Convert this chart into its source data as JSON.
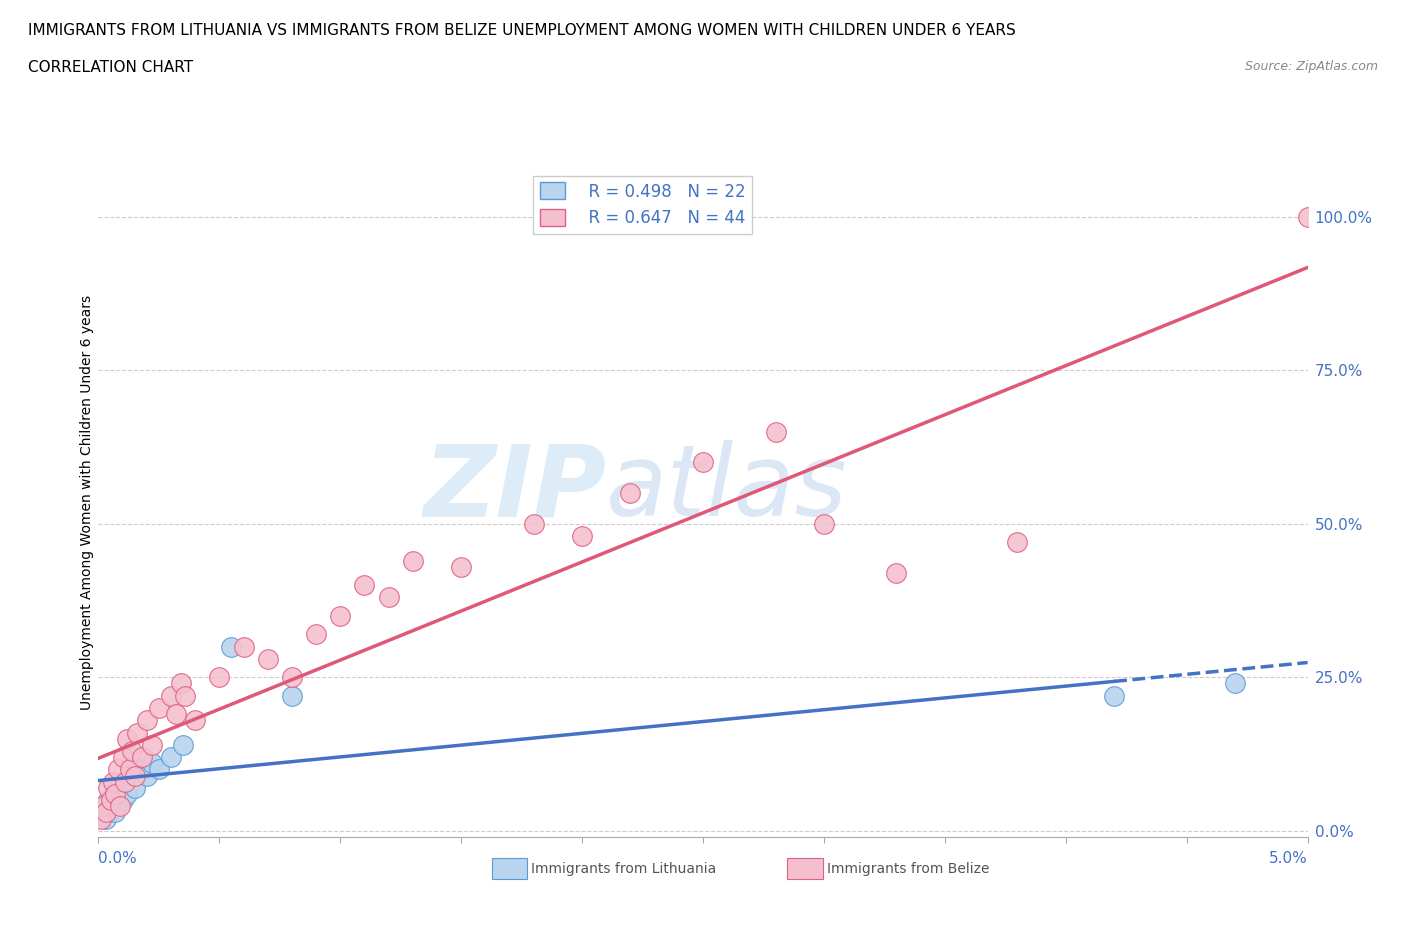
{
  "title_line1": "IMMIGRANTS FROM LITHUANIA VS IMMIGRANTS FROM BELIZE UNEMPLOYMENT AMONG WOMEN WITH CHILDREN UNDER 6 YEARS",
  "title_line2": "CORRELATION CHART",
  "source": "Source: ZipAtlas.com",
  "ylabel": "Unemployment Among Women with Children Under 6 years",
  "right_yticks": [
    0.0,
    0.25,
    0.5,
    0.75,
    1.0
  ],
  "right_yticklabels": [
    "0.0%",
    "25.0%",
    "50.0%",
    "75.0%",
    "100.0%"
  ],
  "legend_r1": "R = 0.498",
  "legend_n1": "N = 22",
  "legend_r2": "R = 0.647",
  "legend_n2": "N = 44",
  "color_lithuania_fill": "#b8d4ee",
  "color_lithuania_edge": "#5b9bd5",
  "color_belize_fill": "#f4c0d0",
  "color_belize_edge": "#e06080",
  "color_line_lithuania": "#4472c4",
  "color_line_belize": "#e05878",
  "watermark_zip": "ZIP",
  "watermark_atlas": "atlas",
  "watermark_color_zip": "#dce9f5",
  "watermark_color_atlas": "#c8dff0",
  "xlim": [
    0.0,
    0.05
  ],
  "ylim": [
    -0.01,
    1.08
  ],
  "lith_x": [
    0.0002,
    0.0003,
    0.0004,
    0.0005,
    0.0006,
    0.0007,
    0.0008,
    0.001,
    0.0011,
    0.0012,
    0.0013,
    0.0015,
    0.0017,
    0.002,
    0.0022,
    0.0025,
    0.003,
    0.0035,
    0.0055,
    0.008,
    0.042,
    0.047
  ],
  "lith_y": [
    0.03,
    0.02,
    0.05,
    0.04,
    0.06,
    0.03,
    0.07,
    0.05,
    0.08,
    0.06,
    0.09,
    0.07,
    0.1,
    0.09,
    0.11,
    0.1,
    0.12,
    0.14,
    0.3,
    0.22,
    0.22,
    0.24
  ],
  "belize_x": [
    0.0001,
    0.0002,
    0.0003,
    0.0004,
    0.0005,
    0.0006,
    0.0007,
    0.0008,
    0.0009,
    0.001,
    0.0011,
    0.0012,
    0.0013,
    0.0014,
    0.0015,
    0.0016,
    0.0018,
    0.002,
    0.0022,
    0.0025,
    0.003,
    0.0032,
    0.0034,
    0.0036,
    0.004,
    0.005,
    0.006,
    0.007,
    0.008,
    0.009,
    0.01,
    0.011,
    0.012,
    0.013,
    0.015,
    0.018,
    0.02,
    0.022,
    0.025,
    0.028,
    0.03,
    0.033,
    0.038,
    0.05
  ],
  "belize_y": [
    0.02,
    0.04,
    0.03,
    0.07,
    0.05,
    0.08,
    0.06,
    0.1,
    0.04,
    0.12,
    0.08,
    0.15,
    0.1,
    0.13,
    0.09,
    0.16,
    0.12,
    0.18,
    0.14,
    0.2,
    0.22,
    0.19,
    0.24,
    0.22,
    0.18,
    0.25,
    0.3,
    0.28,
    0.25,
    0.32,
    0.35,
    0.4,
    0.38,
    0.44,
    0.43,
    0.5,
    0.48,
    0.55,
    0.6,
    0.65,
    0.5,
    0.42,
    0.47,
    1.0
  ]
}
